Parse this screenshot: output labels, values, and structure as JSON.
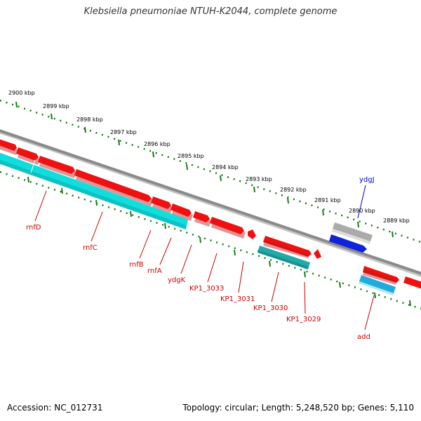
{
  "title": "Klebsiella pneumoniae NTUH-K2044, complete genome",
  "footer": {
    "accession": "Accession: NC_012731",
    "summary": "Topology: circular; Length: 5,248,520 bp; Genes: 5,110"
  },
  "colors": {
    "backbone": "#8a8a8a",
    "tick": "#1a7a1a",
    "gene_label": "#cc0000",
    "highlight_label": "#0000cc",
    "cds_red": "#ee1111",
    "cds_cyan": "#11dddd",
    "cds_teal": "#22aaaa",
    "cds_blue": "#1122dd",
    "cds_grey": "#aaaaaa",
    "cds_lightblue": "#22aadd"
  },
  "scale_ticks": [
    "2900 kbp",
    "2899 kbp",
    "2898 kbp",
    "2897 kbp",
    "2896 kbp",
    "2895 kbp",
    "2894 kbp",
    "2893 kbp",
    "2892 kbp",
    "2891 kbp",
    "2890 kbp",
    "2889 kbp"
  ],
  "genes": {
    "rnfD": "rnfD",
    "rnfC": "rnfC",
    "rnfB": "rnfB",
    "rnfA": "rnfA",
    "ydgK": "ydgK",
    "kp1_3033": "KP1_3033",
    "kp1_3031": "KP1_3031",
    "kp1_3030": "KP1_3030",
    "kp1_3029": "KP1_3029",
    "add": "add",
    "ydgJ": "ydgJ"
  }
}
